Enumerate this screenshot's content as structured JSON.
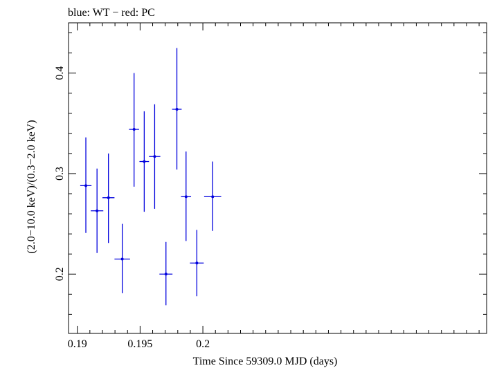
{
  "chart_data": {
    "type": "scatter",
    "title": "blue: WT − red: PC",
    "xlabel": "Time Since 59309.0 MJD (days)",
    "ylabel": "(2.0−10.0 keV)/(0.3−2.0 keV)",
    "xlim": [
      0.1893,
      0.2226
    ],
    "ylim": [
      0.141,
      0.45
    ],
    "x_ticks": [
      {
        "value": 0.19,
        "label": "0.19"
      },
      {
        "value": 0.195,
        "label": "0.195"
      },
      {
        "value": 0.2,
        "label": "0.2"
      }
    ],
    "y_ticks": [
      {
        "value": 0.2,
        "label": "0.2"
      },
      {
        "value": 0.3,
        "label": "0.3"
      },
      {
        "value": 0.4,
        "label": "0.4"
      }
    ],
    "grid": false,
    "series": [
      {
        "name": "WT",
        "color": "#0000dd",
        "points": [
          {
            "x": 0.19068,
            "xerr": 0.00045,
            "y": 0.288,
            "y_lo": 0.241,
            "y_hi": 0.336
          },
          {
            "x": 0.19157,
            "xerr": 0.0005,
            "y": 0.263,
            "y_lo": 0.221,
            "y_hi": 0.305
          },
          {
            "x": 0.19248,
            "xerr": 0.00048,
            "y": 0.276,
            "y_lo": 0.231,
            "y_hi": 0.32
          },
          {
            "x": 0.19358,
            "xerr": 0.00062,
            "y": 0.215,
            "y_lo": 0.181,
            "y_hi": 0.25
          },
          {
            "x": 0.19452,
            "xerr": 0.0004,
            "y": 0.344,
            "y_lo": 0.287,
            "y_hi": 0.4
          },
          {
            "x": 0.19533,
            "xerr": 0.00038,
            "y": 0.312,
            "y_lo": 0.262,
            "y_hi": 0.362
          },
          {
            "x": 0.19616,
            "xerr": 0.00045,
            "y": 0.317,
            "y_lo": 0.265,
            "y_hi": 0.369
          },
          {
            "x": 0.19706,
            "xerr": 0.00052,
            "y": 0.2,
            "y_lo": 0.169,
            "y_hi": 0.232
          },
          {
            "x": 0.19793,
            "xerr": 0.00038,
            "y": 0.364,
            "y_lo": 0.304,
            "y_hi": 0.425
          },
          {
            "x": 0.19866,
            "xerr": 0.0004,
            "y": 0.277,
            "y_lo": 0.233,
            "y_hi": 0.322
          },
          {
            "x": 0.19952,
            "xerr": 0.00055,
            "y": 0.211,
            "y_lo": 0.178,
            "y_hi": 0.244
          },
          {
            "x": 0.20078,
            "xerr": 0.00068,
            "y": 0.277,
            "y_lo": 0.243,
            "y_hi": 0.312
          }
        ]
      }
    ]
  }
}
